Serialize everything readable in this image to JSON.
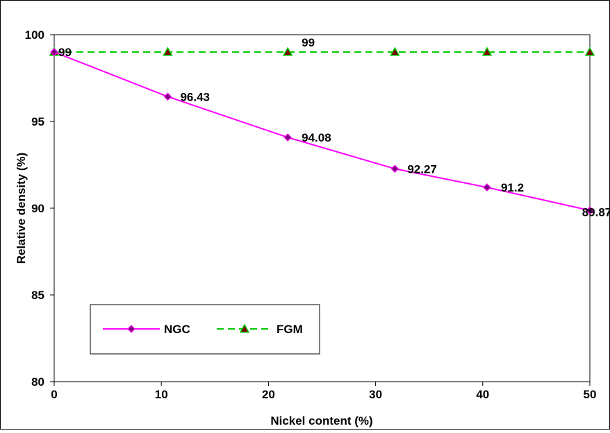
{
  "chart_data": {
    "type": "line",
    "xlabel": "Nickel content (%)",
    "ylabel": "Relative density (%)",
    "xlim": [
      0,
      50
    ],
    "ylim": [
      80,
      100
    ],
    "xticks": [
      "0",
      "10",
      "20",
      "30",
      "40",
      "50"
    ],
    "yticks": [
      "80",
      "85",
      "90",
      "95",
      "100"
    ],
    "grid": false,
    "legend_position": "lower-left",
    "series": [
      {
        "name": "NGC",
        "color": "#ff00ff",
        "marker": "diamond",
        "marker_color": "#800080",
        "line_style": "solid",
        "x": [
          0,
          10.6,
          21.8,
          31.8,
          40.4,
          50
        ],
        "y": [
          99,
          96.43,
          94.08,
          92.27,
          91.2,
          89.87
        ],
        "labels": [
          "99",
          "96.43",
          "94.08",
          "92.27",
          "91.2",
          "89.87"
        ]
      },
      {
        "name": "FGM",
        "color": "#00cc00",
        "marker": "triangle",
        "marker_color": "#800000",
        "line_style": "dashed",
        "x": [
          0,
          10.6,
          21.8,
          31.8,
          40.4,
          50
        ],
        "y": [
          99,
          99,
          99,
          99,
          99,
          99
        ],
        "labels": [
          "",
          "",
          "99",
          "",
          "",
          ""
        ]
      }
    ]
  }
}
